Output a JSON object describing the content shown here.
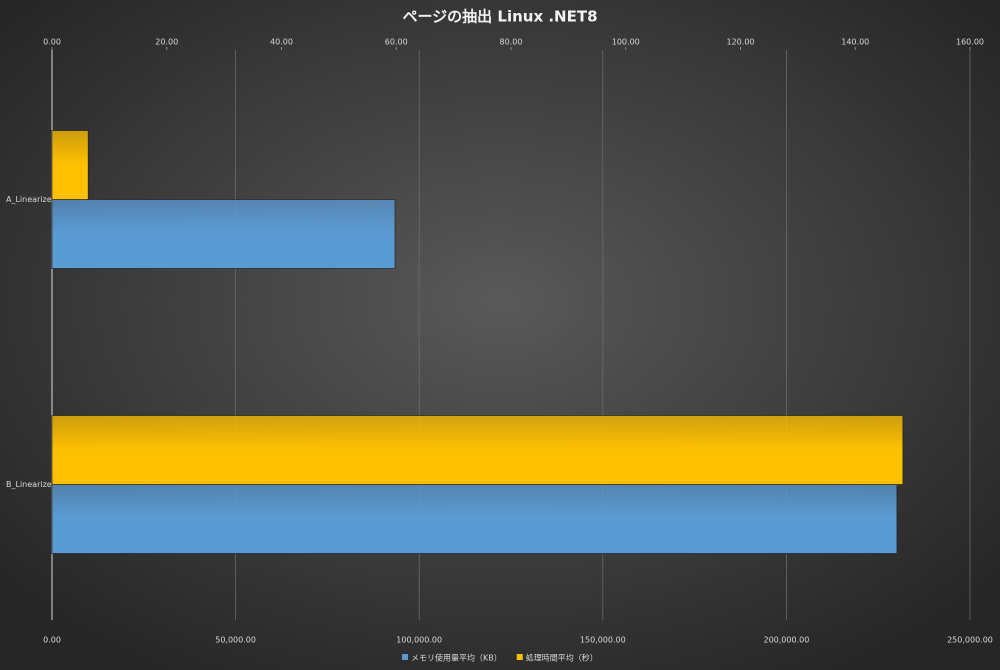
{
  "chart_data": {
    "type": "bar",
    "orientation": "horizontal",
    "title": "ページの抽出 Linux .NET8",
    "categories": [
      "A_Linearize",
      "B_Linearize"
    ],
    "series": [
      {
        "name": "メモリ使用量平均（KB）",
        "color": "#5b9bd5",
        "axis": "x",
        "values": [
          93400,
          230100
        ]
      },
      {
        "name": "処理時間平均（秒）",
        "color": "#ffc000",
        "axis": "x2",
        "values": [
          6.3,
          148.3
        ]
      }
    ],
    "xlim": [
      0,
      250000
    ],
    "xticks": [
      {
        "value": 0,
        "label": "0.00"
      },
      {
        "value": 50000,
        "label": "50,000.00"
      },
      {
        "value": 100000,
        "label": "100,000.00"
      },
      {
        "value": 150000,
        "label": "150,000.00"
      },
      {
        "value": 200000,
        "label": "200,000.00"
      },
      {
        "value": 250000,
        "label": "250,000.00"
      }
    ],
    "x2lim": [
      0,
      160
    ],
    "x2ticks": [
      {
        "value": 0,
        "label": "0.00"
      },
      {
        "value": 20,
        "label": "20.00"
      },
      {
        "value": 40,
        "label": "40.00"
      },
      {
        "value": 60,
        "label": "60.00"
      },
      {
        "value": 80,
        "label": "80.00"
      },
      {
        "value": 100,
        "label": "100.00"
      },
      {
        "value": 120,
        "label": "120.00"
      },
      {
        "value": 140,
        "label": "140.00"
      },
      {
        "value": 160,
        "label": "160.00"
      }
    ],
    "grid": true,
    "legend": "bottom"
  }
}
